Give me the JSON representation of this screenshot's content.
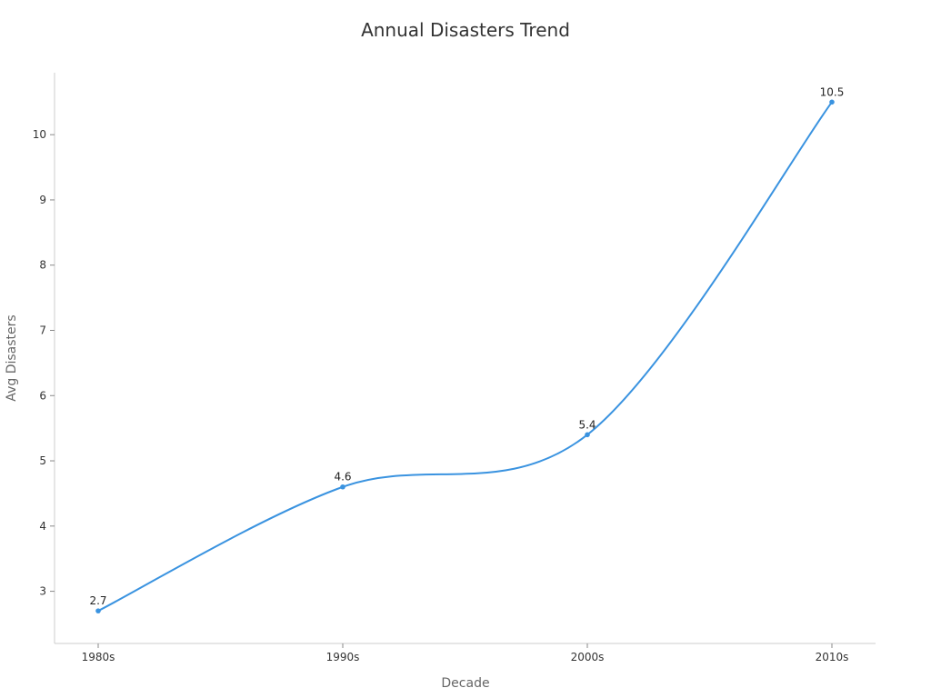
{
  "chart_data": {
    "type": "line",
    "title": "Annual Disasters Trend",
    "xlabel": "Decade",
    "ylabel": "Avg Disasters",
    "categories": [
      "1980s",
      "1990s",
      "2000s",
      "2010s"
    ],
    "series": [
      {
        "name": "Avg Disasters",
        "values": [
          2.7,
          4.6,
          5.4,
          10.5
        ],
        "data_labels": [
          "2.7",
          "4.6",
          "5.4",
          "10.5"
        ]
      }
    ],
    "yticks": [
      3,
      4,
      5,
      6,
      7,
      8,
      9,
      10
    ],
    "ylim": [
      2.2,
      10.95
    ],
    "grid": false,
    "legend": "none",
    "line_color": "#3a93e0"
  }
}
